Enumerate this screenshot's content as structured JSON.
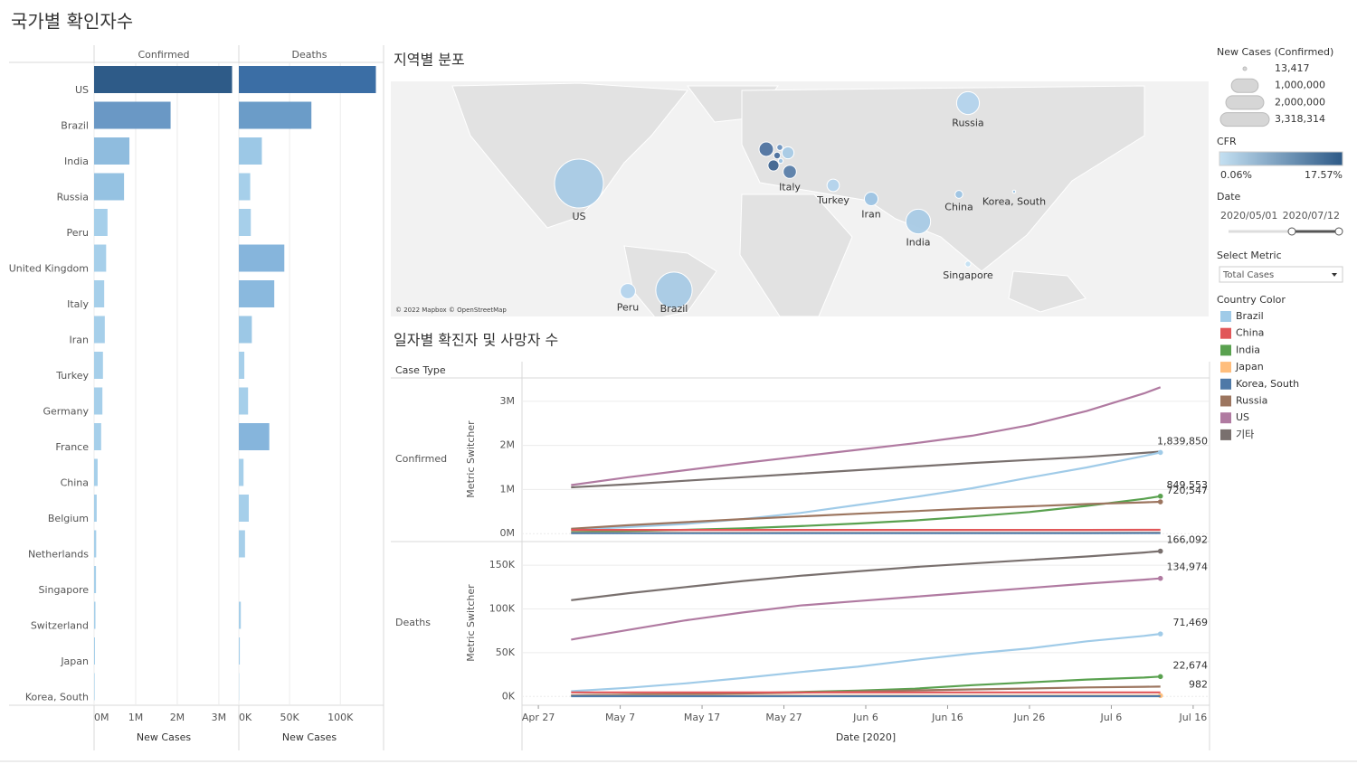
{
  "title": "국가별 확인자수",
  "chart_data": [
    {
      "type": "bar",
      "orientation": "horizontal",
      "header": "Confirmed",
      "categories": [
        "US",
        "Brazil",
        "India",
        "Russia",
        "Peru",
        "United Kingdom",
        "Italy",
        "Iran",
        "Turkey",
        "Germany",
        "France",
        "China",
        "Belgium",
        "Netherlands",
        "Singapore",
        "Switzerland",
        "Japan",
        "Korea, South"
      ],
      "values": [
        3318314,
        1839850,
        849553,
        720547,
        322710,
        290000,
        243061,
        257303,
        212993,
        200000,
        170000,
        85050,
        62800,
        51000,
        46283,
        33000,
        21500,
        13417
      ],
      "colors": [
        "#2e5b88",
        "#6a98c5",
        "#8fbcde",
        "#95c2e2",
        "#a6cfea",
        "#a6cfea",
        "#a6cfea",
        "#a6cfea",
        "#a6cfea",
        "#a6cfea",
        "#a6cfea",
        "#a6cfea",
        "#a6cfea",
        "#a6cfea",
        "#a6cfea",
        "#a6cfea",
        "#a6cfea",
        "#a6cfea"
      ],
      "xlim": [
        0,
        3350000
      ],
      "xticks": [
        {
          "value": 0,
          "label": "0M"
        },
        {
          "value": 1000000,
          "label": "1M"
        },
        {
          "value": 2000000,
          "label": "2M"
        },
        {
          "value": 3000000,
          "label": "3M"
        }
      ],
      "xlabel": "New Cases",
      "grid": true
    },
    {
      "type": "bar",
      "orientation": "horizontal",
      "header": "Deaths",
      "values": [
        134974,
        71469,
        22674,
        11205,
        11800,
        44800,
        34900,
        12800,
        5400,
        9100,
        30000,
        4641,
        9800,
        6100,
        26,
        1970,
        982,
        289
      ],
      "colors": [
        "#3b6ea5",
        "#6b9cc8",
        "#9cc8e6",
        "#a6cfea",
        "#a6cfea",
        "#86b5dc",
        "#8ab9de",
        "#9cc8e6",
        "#a6cfea",
        "#a6cfea",
        "#86b5dc",
        "#a6cfea",
        "#a6cfea",
        "#a6cfea",
        "#a6cfea",
        "#a6cfea",
        "#a6cfea",
        "#a6cfea"
      ],
      "xlim": [
        0,
        139000
      ],
      "xticks": [
        {
          "value": 0,
          "label": "0K"
        },
        {
          "value": 50000,
          "label": "50K"
        },
        {
          "value": 100000,
          "label": "100K"
        }
      ],
      "xlabel": "New Cases",
      "grid": true
    },
    {
      "type": "bubble-map",
      "title": "지역별 분포",
      "attribution": "© 2022 Mapbox © OpenStreetMap",
      "points": [
        {
          "label": "US",
          "value": 3318314,
          "color": "#a8cae5"
        },
        {
          "label": "Brazil",
          "value": 1839850,
          "color": "#a8cae5"
        },
        {
          "label": "India",
          "value": 849553,
          "color": "#a8cae5"
        },
        {
          "label": "Russia",
          "value": 720547,
          "color": "#b3d3ec"
        },
        {
          "label": "Peru",
          "value": 322710,
          "color": "#b3d3ec"
        },
        {
          "label": null,
          "value": 290000,
          "color": "#4f73a0"
        },
        {
          "label": "Italy",
          "value": 243061,
          "color": "#5a7ea9"
        },
        {
          "label": "Iran",
          "value": 257303,
          "color": "#9cc3e3"
        },
        {
          "label": "Turkey",
          "value": 212993,
          "color": "#b3d3ec"
        },
        {
          "label": null,
          "value": 200000,
          "color": "#a8cae5"
        },
        {
          "label": null,
          "value": 170000,
          "color": "#3f6590"
        },
        {
          "label": "China",
          "value": 85050,
          "color": "#9cc3e3"
        },
        {
          "label": null,
          "value": 62800,
          "color": "#4a6f9c"
        },
        {
          "label": null,
          "value": 51000,
          "color": "#6f94bf"
        },
        {
          "label": "Singapore",
          "value": 46283,
          "color": "#c4e0f2"
        },
        {
          "label": null,
          "value": 33000,
          "color": "#9cc3e3"
        },
        {
          "label": "Korea, South",
          "value": 13417,
          "color": "#9cc3e3"
        }
      ]
    },
    {
      "type": "line",
      "title": "일자별 확진자 및 사망자 수",
      "row_header": "Case Type",
      "xlabel": "Date [2020]",
      "x": [
        "2020-05-01",
        "2020-05-08",
        "2020-05-15",
        "2020-05-22",
        "2020-05-29",
        "2020-06-05",
        "2020-06-12",
        "2020-06-19",
        "2020-06-26",
        "2020-07-03",
        "2020-07-10",
        "2020-07-12"
      ],
      "xlim": [
        "2020-04-25",
        "2020-07-18"
      ],
      "xticks": [
        {
          "value": "2020-04-27",
          "label": "Apr 27"
        },
        {
          "value": "2020-05-07",
          "label": "May 7"
        },
        {
          "value": "2020-05-17",
          "label": "May 17"
        },
        {
          "value": "2020-05-27",
          "label": "May 27"
        },
        {
          "value": "2020-06-06",
          "label": "Jun 6"
        },
        {
          "value": "2020-06-16",
          "label": "Jun 16"
        },
        {
          "value": "2020-06-26",
          "label": "Jun 26"
        },
        {
          "value": "2020-07-06",
          "label": "Jul 6"
        },
        {
          "value": "2020-07-16",
          "label": "Jul 16"
        }
      ],
      "panels": [
        {
          "name": "Confirmed",
          "ylabel": "Metric Switcher",
          "ylim": [
            -160000,
            3530000
          ],
          "yticks": [
            {
              "value": 0,
              "label": "0M"
            },
            {
              "value": 1000000,
              "label": "1M"
            },
            {
              "value": 2000000,
              "label": "2M"
            },
            {
              "value": 3000000,
              "label": "3M"
            }
          ],
          "series": [
            {
              "name": "기타",
              "color": "#79706e",
              "values": [
                1050000,
                1120000,
                1200000,
                1280000,
                1360000,
                1440000,
                1520000,
                1600000,
                1670000,
                1740000,
                1830000,
                1860000
              ]
            },
            {
              "name": "US",
              "color": "#b07aa1",
              "values": [
                1100000,
                1280000,
                1440000,
                1600000,
                1750000,
                1900000,
                2050000,
                2220000,
                2460000,
                2780000,
                3180000,
                3318314
              ]
            },
            {
              "name": "Brazil",
              "color": "#a0cbe8",
              "values": [
                90000,
                150000,
                220000,
                330000,
                470000,
                650000,
                830000,
                1030000,
                1270000,
                1500000,
                1760000,
                1839850
              ],
              "value_labels": [
                null,
                null,
                null,
                null,
                null,
                null,
                null,
                null,
                null,
                null,
                null,
                "1,839,850"
              ]
            },
            {
              "name": "India",
              "color": "#59a14f",
              "values": [
                35000,
                60000,
                85000,
                120000,
                170000,
                230000,
                300000,
                390000,
                490000,
                630000,
                790000,
                849553
              ],
              "value_labels": [
                null,
                null,
                null,
                null,
                null,
                null,
                null,
                null,
                null,
                null,
                null,
                "849,553"
              ]
            },
            {
              "name": "Russia",
              "color": "#9c755f",
              "values": [
                110000,
                190000,
                260000,
                330000,
                390000,
                450000,
                510000,
                570000,
                620000,
                670000,
                710000,
                720547
              ],
              "value_labels": [
                null,
                null,
                null,
                null,
                null,
                null,
                null,
                null,
                null,
                null,
                null,
                "720,547"
              ]
            },
            {
              "name": "China",
              "color": "#e15759",
              "values": [
                83959,
                83990,
                84030,
                84080,
                84120,
                84170,
                84230,
                84400,
                84700,
                84850,
                85050,
                85050
              ]
            },
            {
              "name": "Japan",
              "color": "#ffbe7d",
              "values": [
                14300,
                15500,
                16200,
                16500,
                16800,
                17200,
                17400,
                17800,
                18400,
                19200,
                20700,
                21500
              ]
            },
            {
              "name": "Korea, South",
              "color": "#4e79a7",
              "values": [
                10780,
                10840,
                11020,
                11140,
                11470,
                11720,
                12050,
                12370,
                12600,
                12900,
                13380,
                13417
              ]
            }
          ]
        },
        {
          "name": "Deaths",
          "ylabel": "Metric Switcher",
          "ylim": [
            -8000,
            176000
          ],
          "yticks": [
            {
              "value": 0,
              "label": "0K"
            },
            {
              "value": 50000,
              "label": "50K"
            },
            {
              "value": 100000,
              "label": "100K"
            },
            {
              "value": 150000,
              "label": "150K"
            }
          ],
          "series": [
            {
              "name": "기타",
              "color": "#79706e",
              "values": [
                110000,
                118000,
                125000,
                132000,
                138000,
                143000,
                148000,
                152000,
                156000,
                160000,
                164500,
                166092
              ],
              "value_labels": [
                null,
                null,
                null,
                null,
                null,
                null,
                null,
                null,
                null,
                null,
                null,
                "166,092"
              ]
            },
            {
              "name": "US",
              "color": "#b07aa1",
              "values": [
                65000,
                76000,
                87000,
                96000,
                104000,
                109000,
                114000,
                119000,
                124000,
                129000,
                133500,
                134974
              ],
              "value_labels": [
                null,
                null,
                null,
                null,
                null,
                null,
                null,
                null,
                null,
                null,
                null,
                "134,974"
              ]
            },
            {
              "name": "Brazil",
              "color": "#a0cbe8",
              "values": [
                6000,
                9900,
                15000,
                21000,
                27900,
                34000,
                41800,
                49000,
                55000,
                63000,
                69200,
                71469
              ],
              "value_labels": [
                null,
                null,
                null,
                null,
                null,
                null,
                null,
                null,
                null,
                null,
                null,
                "71,469"
              ]
            },
            {
              "name": "India",
              "color": "#59a14f",
              "values": [
                1150,
                1900,
                2750,
                3700,
                5100,
                6600,
                8900,
                12900,
                16100,
                19300,
                21600,
                22674
              ],
              "value_labels": [
                null,
                null,
                null,
                null,
                null,
                null,
                null,
                null,
                null,
                null,
                null,
                "22,674"
              ]
            },
            {
              "name": "Russia",
              "color": "#9c755f",
              "values": [
                1070,
                1800,
                2600,
                3400,
                4400,
                5700,
                6900,
                8000,
                9100,
                10300,
                11000,
                11205
              ]
            },
            {
              "name": "China",
              "color": "#e15759",
              "values": [
                4637,
                4637,
                4637,
                4638,
                4638,
                4638,
                4638,
                4639,
                4641,
                4641,
                4641,
                4641
              ]
            },
            {
              "name": "Japan",
              "color": "#ffbe7d",
              "values": [
                430,
                580,
                710,
                810,
                890,
                920,
                930,
                950,
                970,
                980,
                980,
                982
              ],
              "value_labels": [
                null,
                null,
                null,
                null,
                null,
                null,
                null,
                null,
                null,
                null,
                null,
                "982"
              ]
            },
            {
              "name": "Korea, South",
              "color": "#4e79a7",
              "values": [
                250,
                256,
                263,
                266,
                269,
                273,
                277,
                280,
                282,
                283,
                288,
                289
              ]
            }
          ]
        }
      ]
    }
  ],
  "legends": {
    "size": {
      "title": "New Cases (Confirmed)",
      "items": [
        {
          "value": 13417,
          "label": "13,417"
        },
        {
          "value": 1000000,
          "label": "1,000,000"
        },
        {
          "value": 2000000,
          "label": "2,000,000"
        },
        {
          "value": 3318314,
          "label": "3,318,314"
        }
      ]
    },
    "cfr": {
      "title": "CFR",
      "range": [
        {
          "value": 0.06,
          "label": "0.06%"
        },
        {
          "value": 17.57,
          "label": "17.57%"
        }
      ],
      "colors": [
        "#c4e0f2",
        "#2e5a87"
      ]
    },
    "date": {
      "title": "Date",
      "range": [
        "2020/05/01",
        "2020/07/12"
      ]
    },
    "metric": {
      "title": "Select Metric",
      "value": "Total Cases"
    },
    "country_color": {
      "title": "Country Color",
      "items": [
        {
          "name": "Brazil",
          "color": "#a0cbe8"
        },
        {
          "name": "China",
          "color": "#e15759"
        },
        {
          "name": "India",
          "color": "#59a14f"
        },
        {
          "name": "Japan",
          "color": "#ffbe7d"
        },
        {
          "name": "Korea, South",
          "color": "#4e79a7"
        },
        {
          "name": "Russia",
          "color": "#9c755f"
        },
        {
          "name": "US",
          "color": "#b07aa1"
        },
        {
          "name": "기타",
          "color": "#79706e"
        }
      ]
    }
  }
}
